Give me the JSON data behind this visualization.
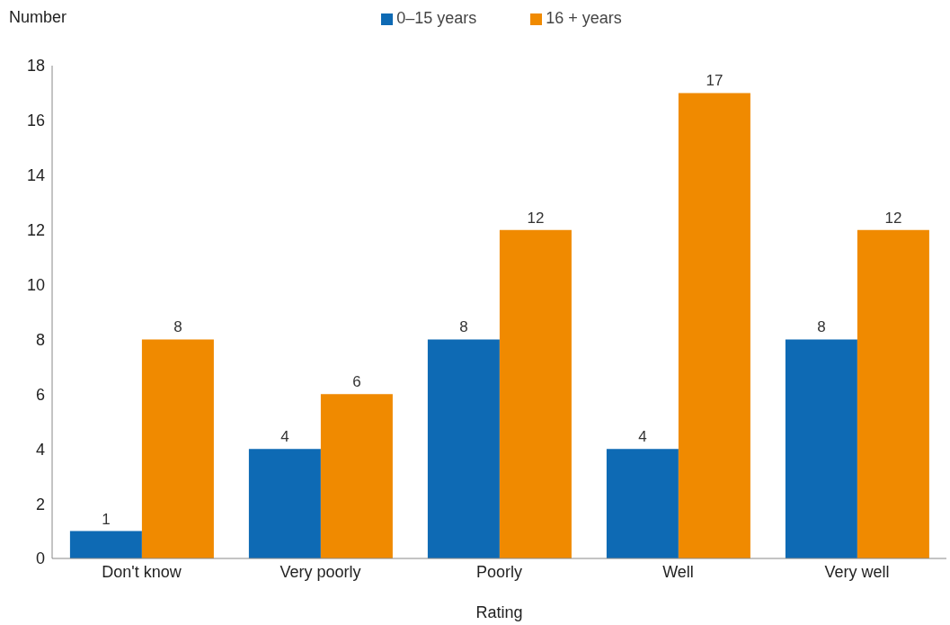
{
  "chart_data": {
    "type": "bar",
    "ylabel": "Number",
    "xlabel": "Rating",
    "categories": [
      "Don't know",
      "Very poorly",
      "Poorly",
      "Well",
      "Very well"
    ],
    "series": [
      {
        "name": "0–15 years",
        "color": "#0e6ab4",
        "values": [
          1,
          4,
          8,
          4,
          8
        ]
      },
      {
        "name": "16 + years",
        "color": "#f08a00",
        "values": [
          8,
          6,
          12,
          17,
          12
        ]
      }
    ],
    "ylim": [
      0,
      18
    ],
    "yticks": [
      0,
      2,
      4,
      6,
      8,
      10,
      12,
      14,
      16,
      18
    ],
    "grid": false,
    "legend": "top",
    "data_labels": true
  }
}
